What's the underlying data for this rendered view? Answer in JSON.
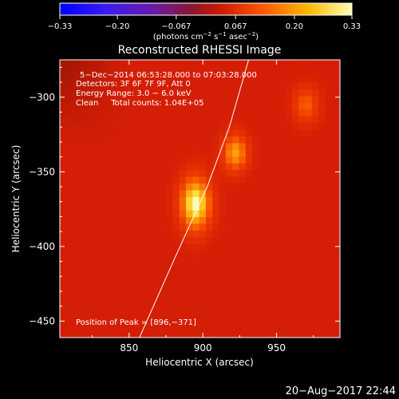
{
  "colorbar": {
    "ticks": [
      -0.33,
      -0.2,
      -0.067,
      0.067,
      0.2,
      0.33
    ],
    "tick_labels": [
      "−0.33",
      "−0.20",
      "−0.067",
      "0.067",
      "0.20",
      "0.33"
    ],
    "label_prefix": "(photons cm",
    "label_sup1": "−2",
    "label_mid1": " s",
    "label_sup2": "−1",
    "label_mid2": " asec",
    "label_sup3": "−2",
    "label_suffix": ")"
  },
  "chart_data": {
    "type": "heatmap",
    "title": "Reconstructed RHESSI Image",
    "xlabel": "Heliocentric X (arcsec)",
    "ylabel": "Heliocentric Y (arcsec)",
    "xlim": [
      803,
      993
    ],
    "ylim": [
      -461,
      -275
    ],
    "xticks": [
      850,
      900,
      950
    ],
    "xtick_labels": [
      "850",
      "900",
      "950"
    ],
    "yticks": [
      -300,
      -350,
      -400,
      -450
    ],
    "ytick_labels": [
      "−300",
      "−350",
      "−400",
      "−450"
    ],
    "colorscale_range": [
      -0.33,
      0.33
    ],
    "sources": [
      {
        "x": 895,
        "y": -371,
        "intensity": 0.33
      },
      {
        "x": 922,
        "y": -337,
        "intensity": 0.24
      },
      {
        "x": 970,
        "y": -305,
        "intensity": 0.16
      }
    ],
    "limb_curve": [
      [
        857,
        -461
      ],
      [
        880,
        -410
      ],
      [
        903,
        -360
      ],
      [
        918,
        -320
      ],
      [
        931,
        -275
      ]
    ],
    "annotations": [
      "5−Dec−2014 06:53:28.000 to 07:03:28.000",
      "Detectors: 3F 6F 7F 9F, Att 0",
      "Energy Range: 3.0 − 6.0 keV",
      "Clean     Total counts: 1.04E+05",
      "Position of Peak = [896,−371]"
    ]
  },
  "footer": {
    "date": "20−Aug−2017 22:44"
  }
}
